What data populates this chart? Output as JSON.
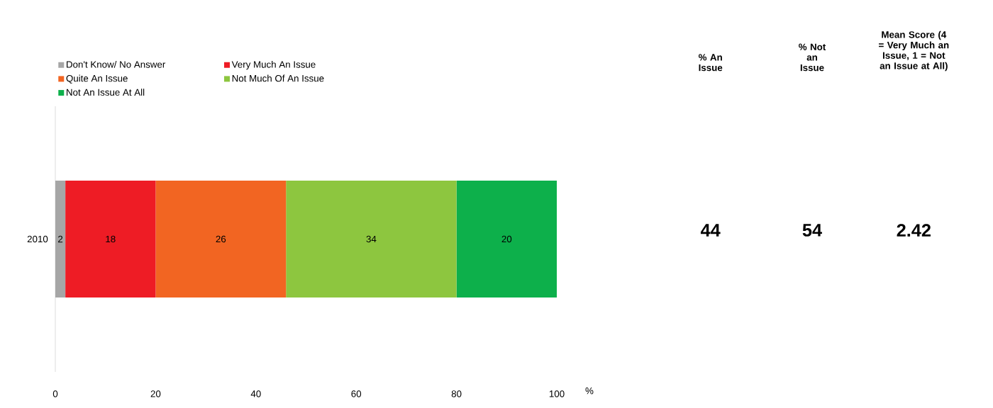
{
  "chart_data": [
    {
      "type": "bar",
      "orientation": "horizontal",
      "stacked": true,
      "categories": [
        "2010"
      ],
      "xlabel": "%",
      "series": [
        {
          "name": "Don't Know/ No Answer",
          "color": "#a6a6a6",
          "values": [
            2
          ]
        },
        {
          "name": "Very Much An Issue",
          "color": "#ee1c25",
          "values": [
            18
          ]
        },
        {
          "name": "Quite An Issue",
          "color": "#f26522",
          "values": [
            26
          ]
        },
        {
          "name": "Not Much Of An Issue",
          "color": "#8dc63f",
          "values": [
            34
          ]
        },
        {
          "name": "Not An Issue At All",
          "color": "#0db04b",
          "values": [
            20
          ]
        }
      ],
      "xlim": [
        0,
        100
      ],
      "xticks": [
        0,
        20,
        40,
        60,
        80,
        100
      ],
      "data_labels": true,
      "legend": "top",
      "grid": false
    },
    {
      "type": "other",
      "categories": [
        "% An Issue",
        "% Not an Issue",
        "Mean Score (4 = Very Much an Issue, 1 = Not an Issue at All)"
      ],
      "values": [
        44,
        54,
        2.42
      ],
      "data_labels": true
    }
  ]
}
